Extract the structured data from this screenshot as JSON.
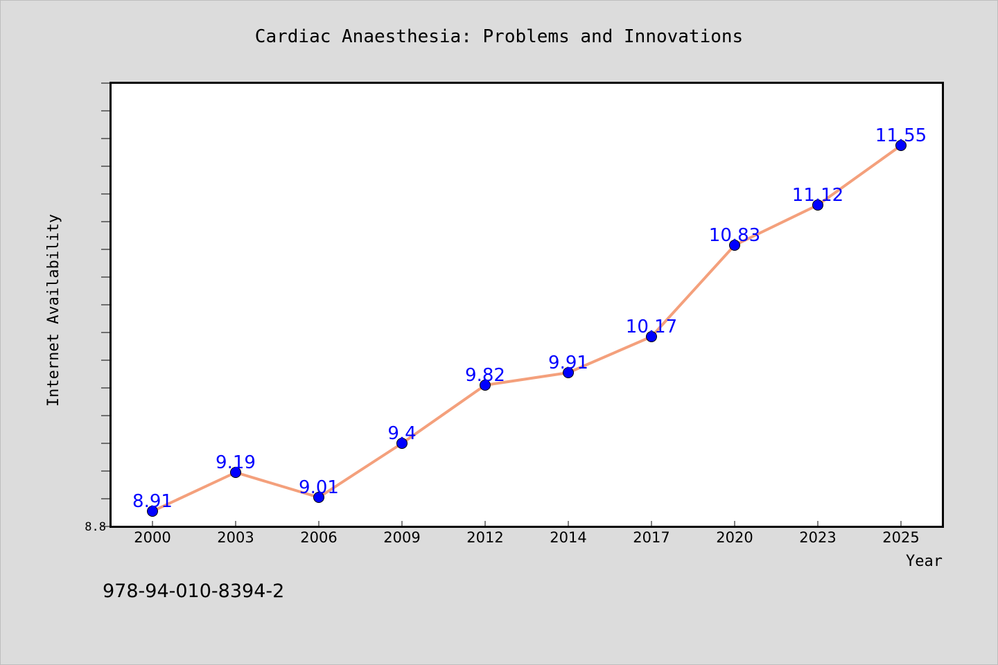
{
  "chart_data": {
    "type": "line",
    "title": "Cardiac Anaesthesia: Problems and Innovations",
    "xlabel": "Year",
    "ylabel": "Internet Availability",
    "categories": [
      "2000",
      "2003",
      "2006",
      "2009",
      "2012",
      "2014",
      "2017",
      "2020",
      "2023",
      "2025"
    ],
    "series": [
      {
        "values": [
          8.91,
          9.19,
          9.01,
          9.4,
          9.82,
          9.91,
          10.17,
          10.83,
          11.12,
          11.55
        ],
        "data_labels": [
          "8.91",
          "9.19",
          "9.01",
          "9.4",
          "9.82",
          "9.91",
          "10.17",
          "10.83",
          "11.12",
          "11.55"
        ]
      }
    ],
    "ylim": [
      8.8,
      12.0
    ],
    "y_tick_labels": [
      "8.8"
    ],
    "grid": false,
    "line_color": "#f4a07c",
    "marker_color": "#0000ff",
    "label_color": "#0000ff",
    "plot_background": "#ffffff",
    "page_background": "#dcdcdc"
  },
  "footer": {
    "isbn": "978-94-010-8394-2"
  }
}
